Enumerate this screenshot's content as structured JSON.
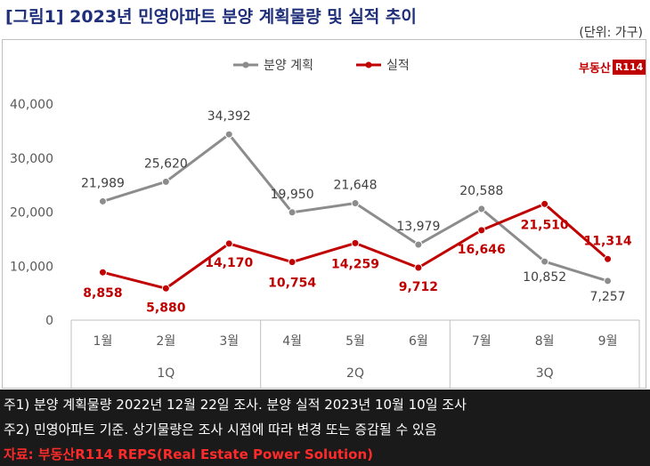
{
  "header": {
    "title": "[그림1] 2023년 민영아파트 분양 계획물량 및 실적 추이",
    "unit": "(단위: 가구)"
  },
  "brand": {
    "text": "부동산",
    "box": "R114"
  },
  "notes": {
    "line1": "주1) 분양 계획물량 2022년 12월 22일 조사. 분양 실적 2023년 10월 10일 조사",
    "line2": "주2) 민영아파트 기준. 상기물량은 조사 시점에 따라 변경 또는 증감될 수 있음",
    "source": "자료: 부동산R114 REPS(Real Estate Power Solution)"
  },
  "chart_data": {
    "type": "line",
    "categories": [
      "1월",
      "2월",
      "3월",
      "4월",
      "5월",
      "6월",
      "7월",
      "8월",
      "9월"
    ],
    "groups": [
      {
        "label": "1Q",
        "span": 3
      },
      {
        "label": "2Q",
        "span": 3
      },
      {
        "label": "3Q",
        "span": 3
      }
    ],
    "series": [
      {
        "name": "분양 계획",
        "color": "#8c8c8c",
        "label_color": "#404040",
        "values": [
          21989,
          25620,
          34392,
          19950,
          21648,
          13979,
          20588,
          10852,
          7257
        ],
        "labels": [
          "21,989",
          "25,620",
          "34,392",
          "19,950",
          "21,648",
          "13,979",
          "20,588",
          "10,852",
          "7,257"
        ]
      },
      {
        "name": "실적",
        "color": "#c00000",
        "label_color": "#c00000",
        "values": [
          8858,
          5880,
          14170,
          10754,
          14259,
          9712,
          16646,
          21510,
          11314
        ],
        "labels": [
          "8,858",
          "5,880",
          "14,170",
          "10,754",
          "14,259",
          "9,712",
          "16,646",
          "21,510",
          "11,314"
        ]
      }
    ],
    "yticks": [
      "0",
      "10,000",
      "20,000",
      "30,000",
      "40,000"
    ],
    "ylim": [
      0,
      40000
    ],
    "grid": false,
    "legend_position": "top"
  }
}
